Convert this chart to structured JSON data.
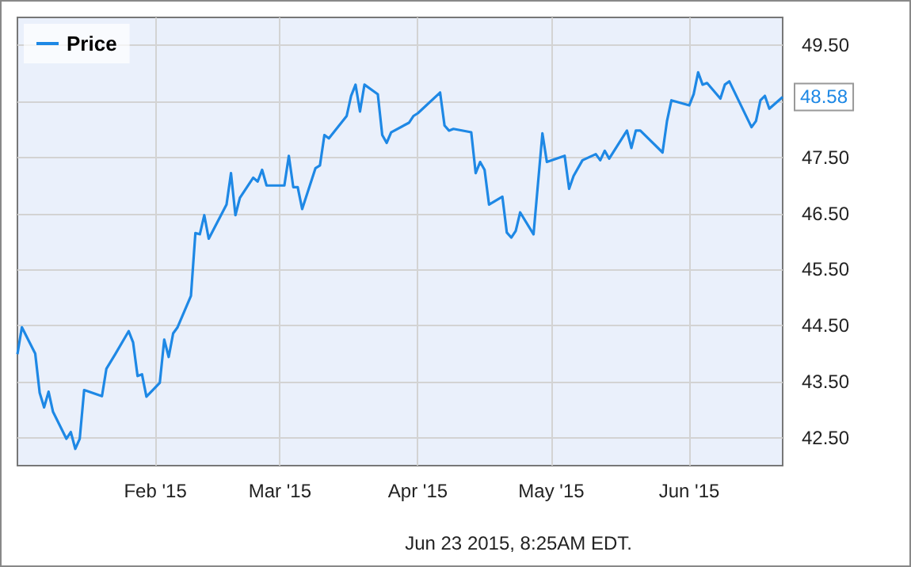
{
  "chart_data": {
    "type": "line",
    "legend": "top left",
    "grid": true,
    "marker": "none",
    "x": [
      "2015-01-01",
      "2015-01-02",
      "2015-01-05",
      "2015-01-06",
      "2015-01-07",
      "2015-01-08",
      "2015-01-09",
      "2015-01-12",
      "2015-01-13",
      "2015-01-14",
      "2015-01-15",
      "2015-01-16",
      "2015-01-20",
      "2015-01-21",
      "2015-01-23",
      "2015-01-26",
      "2015-01-27",
      "2015-01-28",
      "2015-01-29",
      "2015-01-30",
      "2015-02-02",
      "2015-02-03",
      "2015-02-04",
      "2015-02-05",
      "2015-02-06",
      "2015-02-09",
      "2015-02-10",
      "2015-02-11",
      "2015-02-12",
      "2015-02-13",
      "2015-02-17",
      "2015-02-18",
      "2015-02-19",
      "2015-02-20",
      "2015-02-23",
      "2015-02-24",
      "2015-02-25",
      "2015-02-26",
      "2015-03-02",
      "2015-03-03",
      "2015-03-04",
      "2015-03-05",
      "2015-03-06",
      "2015-03-09",
      "2015-03-10",
      "2015-03-11",
      "2015-03-12",
      "2015-03-16",
      "2015-03-17",
      "2015-03-18",
      "2015-03-19",
      "2015-03-20",
      "2015-03-23",
      "2015-03-24",
      "2015-03-25",
      "2015-03-26",
      "2015-03-30",
      "2015-03-31",
      "2015-04-01",
      "2015-04-06",
      "2015-04-07",
      "2015-04-08",
      "2015-04-09",
      "2015-04-13",
      "2015-04-14",
      "2015-04-15",
      "2015-04-16",
      "2015-04-17",
      "2015-04-20",
      "2015-04-21",
      "2015-04-22",
      "2015-04-23",
      "2015-04-24",
      "2015-04-27",
      "2015-04-29",
      "2015-04-30",
      "2015-05-04",
      "2015-05-05",
      "2015-05-06",
      "2015-05-08",
      "2015-05-11",
      "2015-05-12",
      "2015-05-13",
      "2015-05-14",
      "2015-05-18",
      "2015-05-19",
      "2015-05-20",
      "2015-05-21",
      "2015-05-26",
      "2015-05-27",
      "2015-05-28",
      "2015-06-01",
      "2015-06-02",
      "2015-06-03",
      "2015-06-04",
      "2015-06-05",
      "2015-06-08",
      "2015-06-09",
      "2015-06-10",
      "2015-06-15",
      "2015-06-16",
      "2015-06-17",
      "2015-06-18",
      "2015-06-19",
      "2015-06-22"
    ],
    "series": [
      {
        "name": "Price",
        "color": "#1e88e5",
        "values": [
          43.99,
          44.47,
          44.0,
          43.3,
          43.04,
          43.32,
          42.96,
          42.48,
          42.6,
          42.3,
          42.48,
          43.35,
          43.24,
          43.73,
          43.99,
          44.4,
          44.2,
          43.6,
          43.63,
          43.23,
          43.48,
          44.25,
          43.94,
          44.36,
          44.47,
          45.03,
          46.15,
          46.13,
          46.47,
          46.05,
          46.66,
          47.22,
          46.47,
          46.78,
          47.14,
          47.07,
          47.28,
          47.0,
          47.0,
          47.53,
          46.97,
          46.97,
          46.58,
          47.31,
          47.36,
          47.9,
          47.84,
          48.24,
          48.6,
          48.8,
          48.32,
          48.8,
          48.63,
          47.9,
          47.76,
          47.95,
          48.12,
          48.24,
          48.29,
          48.66,
          48.07,
          47.98,
          48.01,
          47.95,
          47.22,
          47.42,
          47.28,
          46.66,
          46.8,
          46.16,
          46.07,
          46.19,
          46.52,
          46.13,
          47.93,
          47.42,
          47.53,
          46.94,
          47.17,
          47.45,
          47.56,
          47.45,
          47.62,
          47.48,
          47.98,
          47.67,
          47.98,
          47.98,
          47.59,
          48.15,
          48.52,
          48.43,
          48.63,
          49.02,
          48.8,
          48.83,
          48.55,
          48.8,
          48.86,
          48.04,
          48.15,
          48.52,
          48.6,
          48.37,
          48.58
        ]
      }
    ],
    "xlim": [
      "2015-01-01",
      "2015-06-22"
    ],
    "xticks": [
      {
        "value": "2015-02-01",
        "label": "Feb '15"
      },
      {
        "value": "2015-03-01",
        "label": "Mar '15"
      },
      {
        "value": "2015-04-01",
        "label": "Apr '15"
      },
      {
        "value": "2015-05-01",
        "label": "May '15"
      },
      {
        "value": "2015-06-01",
        "label": "Jun '15"
      }
    ],
    "ylim": [
      42,
      50
    ],
    "yticks": [
      {
        "value": 42.5,
        "label": "42.50"
      },
      {
        "value": 43.5,
        "label": "43.50"
      },
      {
        "value": 44.5,
        "label": "44.50"
      },
      {
        "value": 45.5,
        "label": "45.50"
      },
      {
        "value": 46.5,
        "label": "46.50"
      },
      {
        "value": 47.5,
        "label": "47.50"
      },
      {
        "value": 48.5,
        "label": null
      },
      {
        "value": 49.5,
        "label": "49.50"
      }
    ],
    "annotations": [
      {
        "text": "48.58",
        "x": "2015-06-22",
        "y": 48.58
      },
      "Jun 23 2015, 8:25AM EDT."
    ]
  }
}
